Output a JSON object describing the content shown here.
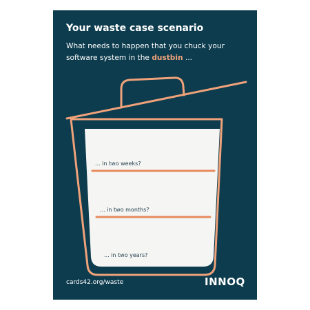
{
  "card": {
    "title": "Your waste case scenario",
    "subtitle_part1": "What needs to happen that you chuck your software system in the ",
    "subtitle_highlight": "dustbin",
    "subtitle_part2": " ...",
    "questions": [
      "... in two weeks?",
      "... in two months?",
      "... in two years?"
    ],
    "footer_url": "cards42.org/waste",
    "logo_text": "INNOQ"
  },
  "colors": {
    "background": "#0d3c4e",
    "accent": "#f0a27a",
    "bin_fill": "#f5f5f3",
    "question_text": "#24424f"
  }
}
